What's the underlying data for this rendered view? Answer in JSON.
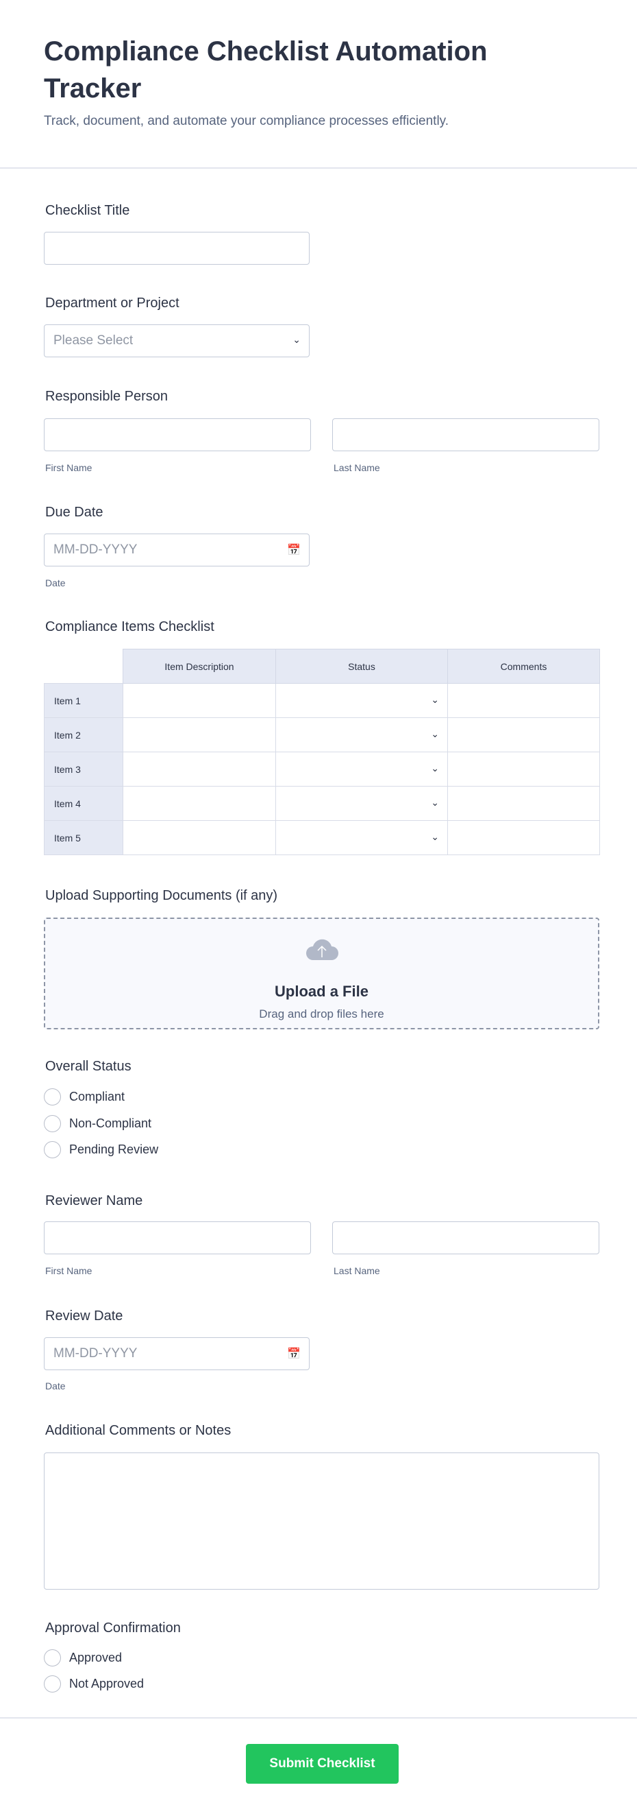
{
  "header": {
    "title": "Compliance Checklist Automation Tracker",
    "subtitle": "Track, document, and automate your compliance processes efficiently."
  },
  "fields": {
    "checklist_title": {
      "label": "Checklist Title",
      "value": ""
    },
    "department": {
      "label": "Department or Project",
      "placeholder": "Please Select"
    },
    "responsible": {
      "label": "Responsible Person",
      "first": "First Name",
      "last": "Last Name"
    },
    "due_date": {
      "label": "Due Date",
      "placeholder": "MM-DD-YYYY",
      "sublabel": "Date"
    },
    "table": {
      "label": "Compliance Items Checklist",
      "columns": [
        "Item Description",
        "Status",
        "Comments"
      ],
      "rows": [
        "Item 1",
        "Item 2",
        "Item 3",
        "Item 4",
        "Item 5"
      ]
    },
    "upload": {
      "label": "Upload Supporting Documents (if any)",
      "title": "Upload a File",
      "hint": "Drag and drop files here"
    },
    "overall_status": {
      "label": "Overall Status",
      "options": [
        "Compliant",
        "Non-Compliant",
        "Pending Review"
      ]
    },
    "reviewer": {
      "label": "Reviewer Name",
      "first": "First Name",
      "last": "Last Name"
    },
    "review_date": {
      "label": "Review Date",
      "placeholder": "MM-DD-YYYY",
      "sublabel": "Date"
    },
    "comments": {
      "label": "Additional Comments or Notes",
      "value": ""
    },
    "approval": {
      "label": "Approval Confirmation",
      "options": [
        "Approved",
        "Not Approved"
      ]
    }
  },
  "submit": {
    "label": "Submit Checklist",
    "color": "#22c55e"
  }
}
